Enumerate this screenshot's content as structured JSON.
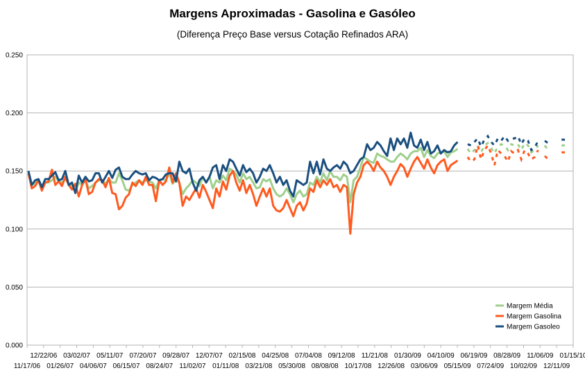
{
  "chart_data": {
    "type": "line",
    "title": "Margens Aproximadas - Gasolina e Gasóleo",
    "subtitle": "(Diferença Preço Base versus Cotação Refinados ARA)",
    "xlabel": "",
    "ylabel": "",
    "ylim": [
      0,
      0.25
    ],
    "yticks": [
      "0.000",
      "0.050",
      "0.100",
      "0.150",
      "0.200",
      "0.250"
    ],
    "grid": true,
    "legend_position": "bottom-right",
    "x_tick_labels_row1": [
      "12/22/06",
      "03/02/07",
      "05/11/07",
      "07/20/07",
      "09/28/07",
      "12/07/07",
      "02/15/08",
      "04/25/08",
      "07/04/08",
      "09/12/08",
      "11/21/08",
      "01/30/09",
      "04/10/09",
      "06/19/09",
      "08/28/09",
      "11/06/09",
      "01/15/10"
    ],
    "x_tick_labels_row2": [
      "11/17/06",
      "01/26/07",
      "04/06/07",
      "06/15/07",
      "08/24/07",
      "11/02/07",
      "01/11/08",
      "03/21/08",
      "05/30/08",
      "08/08/08",
      "10/17/08",
      "12/26/08",
      "03/06/09",
      "05/15/09",
      "07/24/09",
      "10/02/09",
      "12/11/09"
    ],
    "x_start": "11/17/06",
    "x_end": "01/15/10",
    "series": [
      {
        "name": "Margem Média",
        "color": "#9fcf8c",
        "values": [
          0.148,
          0.138,
          0.139,
          0.142,
          0.136,
          0.14,
          0.14,
          0.142,
          0.145,
          0.141,
          0.14,
          0.143,
          0.139,
          0.137,
          0.132,
          0.14,
          0.138,
          0.142,
          0.135,
          0.137,
          0.14,
          0.142,
          0.142,
          0.139,
          0.143,
          0.14,
          0.14,
          0.148,
          0.142,
          0.134,
          0.133,
          0.138,
          0.14,
          0.142,
          0.14,
          0.142,
          0.141,
          0.14,
          0.135,
          0.142,
          0.143,
          0.142,
          0.148,
          0.139,
          0.142,
          0.14,
          0.13,
          0.135,
          0.138,
          0.142,
          0.14,
          0.137,
          0.145,
          0.14,
          0.145,
          0.135,
          0.142,
          0.14,
          0.146,
          0.142,
          0.152,
          0.15,
          0.147,
          0.14,
          0.148,
          0.143,
          0.145,
          0.14,
          0.135,
          0.136,
          0.143,
          0.141,
          0.143,
          0.135,
          0.13,
          0.128,
          0.13,
          0.135,
          0.13,
          0.123,
          0.13,
          0.133,
          0.128,
          0.13,
          0.14,
          0.138,
          0.145,
          0.14,
          0.148,
          0.142,
          0.15,
          0.145,
          0.145,
          0.142,
          0.147,
          0.145,
          0.123,
          0.142,
          0.145,
          0.153,
          0.162,
          0.16,
          0.158,
          0.157,
          0.165,
          0.163,
          0.162,
          0.16,
          0.158,
          0.158,
          0.162,
          0.165,
          0.163,
          0.16,
          0.165,
          0.167,
          0.167,
          0.17,
          0.162,
          0.168,
          0.163,
          0.161,
          0.165,
          0.166,
          0.167,
          0.162,
          0.166,
          0.167,
          0.169,
          null,
          null,
          0.169,
          0.165,
          0.168,
          0.172,
          0.166,
          0.172,
          0.174,
          0.17,
          0.165,
          0.171,
          0.173,
          0.172,
          0.168,
          0.173,
          0.172,
          0.173,
          0.168,
          0.174,
          0.172,
          0.166,
          0.168,
          0.172,
          null,
          0.172,
          0.168,
          null,
          null,
          null,
          0.172,
          0.172
        ],
        "segments_dashed_after_index": 128
      },
      {
        "name": "Margem Gasolina",
        "color": "#ff5a1f",
        "values": [
          0.148,
          0.135,
          0.137,
          0.142,
          0.133,
          0.14,
          0.141,
          0.151,
          0.138,
          0.141,
          0.137,
          0.145,
          0.138,
          0.134,
          0.139,
          0.128,
          0.138,
          0.143,
          0.13,
          0.132,
          0.14,
          0.143,
          0.142,
          0.136,
          0.144,
          0.131,
          0.13,
          0.117,
          0.12,
          0.127,
          0.13,
          0.14,
          0.137,
          0.142,
          0.138,
          0.145,
          0.138,
          0.138,
          0.124,
          0.142,
          0.138,
          0.141,
          0.153,
          0.14,
          0.148,
          0.14,
          0.12,
          0.128,
          0.125,
          0.13,
          0.135,
          0.127,
          0.138,
          0.132,
          0.125,
          0.118,
          0.135,
          0.128,
          0.141,
          0.134,
          0.146,
          0.15,
          0.14,
          0.133,
          0.142,
          0.131,
          0.138,
          0.13,
          0.12,
          0.128,
          0.135,
          0.128,
          0.135,
          0.12,
          0.116,
          0.115,
          0.118,
          0.125,
          0.118,
          0.111,
          0.12,
          0.123,
          0.116,
          0.122,
          0.135,
          0.132,
          0.142,
          0.136,
          0.142,
          0.138,
          0.143,
          0.136,
          0.138,
          0.132,
          0.138,
          0.136,
          0.096,
          0.13,
          0.14,
          0.145,
          0.155,
          0.158,
          0.155,
          0.15,
          0.158,
          0.153,
          0.15,
          0.145,
          0.138,
          0.145,
          0.15,
          0.156,
          0.153,
          0.145,
          0.152,
          0.158,
          0.162,
          0.157,
          0.152,
          0.16,
          0.153,
          0.148,
          0.155,
          0.158,
          0.16,
          0.15,
          0.155,
          0.157,
          0.159,
          null,
          null,
          0.162,
          0.158,
          0.16,
          0.172,
          0.16,
          0.168,
          0.172,
          0.165,
          0.155,
          0.168,
          0.165,
          0.163,
          0.158,
          0.167,
          0.165,
          0.168,
          0.16,
          0.168,
          0.165,
          0.16,
          0.162,
          0.168,
          null,
          0.163,
          0.16,
          null,
          null,
          null,
          0.166,
          0.166
        ],
        "segments_dashed_after_index": 128
      },
      {
        "name": "Margem Gasoleo",
        "color": "#1a4f7f",
        "values": [
          0.15,
          0.138,
          0.142,
          0.143,
          0.136,
          0.143,
          0.143,
          0.146,
          0.149,
          0.142,
          0.143,
          0.15,
          0.138,
          0.14,
          0.131,
          0.146,
          0.14,
          0.145,
          0.141,
          0.142,
          0.148,
          0.148,
          0.14,
          0.145,
          0.15,
          0.144,
          0.151,
          0.153,
          0.145,
          0.143,
          0.143,
          0.147,
          0.15,
          0.148,
          0.147,
          0.148,
          0.142,
          0.145,
          0.144,
          0.142,
          0.143,
          0.147,
          0.148,
          0.148,
          0.141,
          0.158,
          0.15,
          0.148,
          0.152,
          0.14,
          0.133,
          0.142,
          0.145,
          0.14,
          0.145,
          0.153,
          0.155,
          0.143,
          0.155,
          0.15,
          0.16,
          0.158,
          0.152,
          0.146,
          0.155,
          0.149,
          0.152,
          0.148,
          0.14,
          0.145,
          0.152,
          0.15,
          0.155,
          0.148,
          0.14,
          0.145,
          0.138,
          0.142,
          0.133,
          0.128,
          0.142,
          0.14,
          0.138,
          0.14,
          0.158,
          0.148,
          0.158,
          0.147,
          0.16,
          0.152,
          0.15,
          0.153,
          0.155,
          0.152,
          0.158,
          0.155,
          0.148,
          0.15,
          0.155,
          0.16,
          0.162,
          0.173,
          0.168,
          0.17,
          0.175,
          0.172,
          0.167,
          0.163,
          0.178,
          0.168,
          0.178,
          0.173,
          0.178,
          0.17,
          0.183,
          0.172,
          0.17,
          0.177,
          0.168,
          0.175,
          0.165,
          0.167,
          0.172,
          0.165,
          0.168,
          0.166,
          0.167,
          0.172,
          0.175,
          null,
          null,
          0.173,
          0.172,
          0.175,
          0.178,
          0.171,
          0.177,
          0.18,
          0.175,
          0.172,
          0.178,
          0.176,
          0.18,
          0.176,
          0.178,
          0.178,
          0.18,
          0.173,
          0.178,
          0.176,
          0.168,
          0.17,
          0.176,
          null,
          0.176,
          0.174,
          null,
          null,
          null,
          0.177,
          0.177
        ],
        "segments_dashed_after_index": 128
      }
    ]
  }
}
